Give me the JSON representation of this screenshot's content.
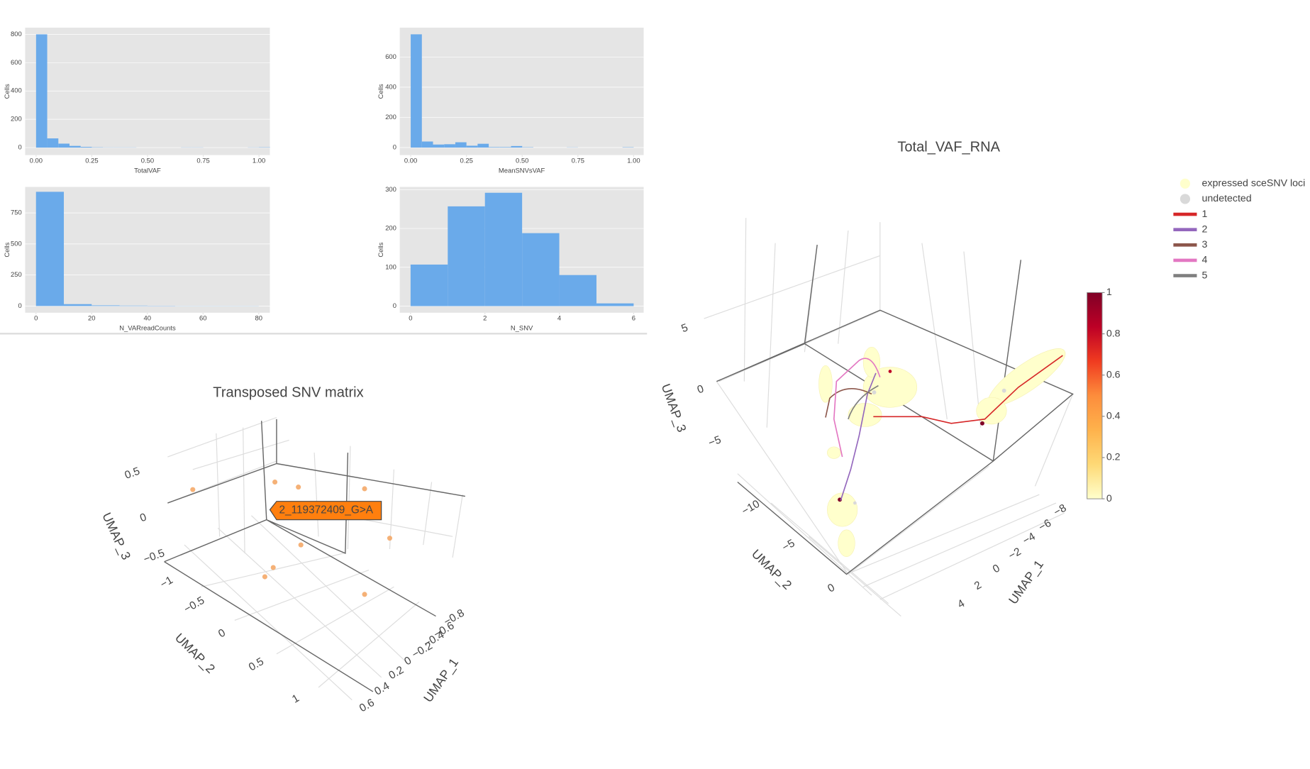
{
  "chart_data": [
    {
      "type": "histogram",
      "xlabel": "TotalVAF",
      "ylabel": "Cells",
      "color": "#6aaaea",
      "grid": true,
      "bins": [
        0,
        0.05,
        0.1,
        0.15,
        0.2,
        0.25,
        0.3,
        0.35,
        0.4,
        0.45,
        0.5,
        0.55,
        0.6,
        0.65,
        0.7,
        0.75,
        0.8,
        0.85,
        0.9,
        0.95,
        1.0,
        1.05
      ],
      "values": [
        800,
        65,
        28,
        12,
        5,
        2,
        1,
        1,
        1,
        0,
        0,
        0,
        0,
        1,
        1,
        0,
        0,
        0,
        0,
        1,
        2
      ],
      "xlim": [
        -0.049,
        1.049
      ],
      "ylim": [
        -53,
        847
      ],
      "xticks": [
        {
          "value": 0,
          "label": "0.00"
        },
        {
          "value": 0.25,
          "label": "0.25"
        },
        {
          "value": 0.5,
          "label": "0.50"
        },
        {
          "value": 0.75,
          "label": "0.75"
        },
        {
          "value": 1,
          "label": "1.00"
        }
      ],
      "yticks": [
        0,
        200,
        400,
        600,
        800
      ]
    },
    {
      "type": "histogram",
      "xlabel": "MeanSNVsVAF",
      "ylabel": "Cells",
      "color": "#6aaaea",
      "grid": true,
      "bins": [
        0,
        0.05,
        0.1,
        0.15,
        0.2,
        0.25,
        0.3,
        0.35,
        0.4,
        0.45,
        0.5,
        0.55,
        0.6,
        0.65,
        0.7,
        0.75,
        0.8,
        0.85,
        0.9,
        0.95,
        1.0
      ],
      "values": [
        750,
        40,
        20,
        22,
        35,
        12,
        25,
        3,
        3,
        10,
        2,
        0,
        0,
        0,
        1,
        0,
        0,
        0,
        0,
        2
      ],
      "xlim": [
        -0.049,
        1.045
      ],
      "ylim": [
        -50,
        794
      ],
      "xticks": [
        {
          "value": 0,
          "label": "0.00"
        },
        {
          "value": 0.25,
          "label": "0.25"
        },
        {
          "value": 0.5,
          "label": "0.50"
        },
        {
          "value": 0.75,
          "label": "0.75"
        },
        {
          "value": 1,
          "label": "1.00"
        }
      ],
      "yticks": [
        0,
        200,
        400,
        600
      ]
    },
    {
      "type": "histogram",
      "xlabel": "N_VARreadCounts",
      "ylabel": "Cells",
      "color": "#6aaaea",
      "grid": true,
      "bins": [
        0,
        10,
        20,
        30,
        40,
        50,
        60,
        70,
        80
      ],
      "values": [
        920,
        15,
        5,
        3,
        2,
        1,
        1,
        1
      ],
      "xlim": [
        -3.9,
        84
      ],
      "ylim": [
        -54,
        959
      ],
      "xticks": [
        0,
        20,
        40,
        60,
        80
      ],
      "yticks": [
        0,
        250,
        500,
        750
      ]
    },
    {
      "type": "histogram",
      "xlabel": "N_SNV",
      "ylabel": "Cells",
      "color": "#6aaaea",
      "grid": true,
      "bins": [
        0,
        1,
        2,
        3,
        4,
        5,
        6
      ],
      "values": [
        107,
        257,
        292,
        188,
        80,
        7
      ],
      "xlim": [
        -0.29,
        6.27
      ],
      "ylim": [
        -17,
        307
      ],
      "xticks": [
        0,
        2,
        4,
        6
      ],
      "yticks": [
        0,
        100,
        200,
        300
      ]
    }
  ],
  "snv_matrix": {
    "title": "Transposed SNV matrix",
    "x_title": "UMAP_1",
    "y_title": "UMAP_2",
    "z_title": "UMAP_3",
    "x_ticks": [
      "−0.8",
      "−0.6",
      "−0.4",
      "−0.2",
      "0",
      "0.2",
      "0.4",
      "0.6"
    ],
    "y_ticks": [
      "−1",
      "−0.5",
      "0",
      "0.5",
      "1"
    ],
    "z_ticks": [
      "0.5",
      "0",
      "−0.5"
    ],
    "hover_label": "2_119372409_G>A"
  },
  "vaf_plot": {
    "title": "Total_VAF_RNA",
    "x_title": "UMAP_1",
    "y_title": "UMAP_2",
    "z_title": "UMAP_3",
    "x_ticks": [
      "−8",
      "−6",
      "−4",
      "−2",
      "0",
      "2",
      "4"
    ],
    "y_ticks": [
      "−10",
      "−5",
      "0"
    ],
    "z_ticks": [
      "5",
      "0",
      "−5"
    ],
    "colorbar": {
      "range": [
        0,
        1
      ],
      "ticks": [
        0,
        0.2,
        0.4,
        0.6,
        0.8,
        1
      ],
      "colors": [
        "#ffffcc",
        "#fed976",
        "#feb24c",
        "#fd8d3c",
        "#f03b20",
        "#bd0026",
        "#800026"
      ]
    },
    "legend": [
      {
        "name": "expressed sceSNV loci",
        "color": "#ffffcc",
        "symbol": "circle"
      },
      {
        "name": "undetected",
        "color": "#d9d9d9",
        "symbol": "circle"
      },
      {
        "name": "1",
        "color": "#d62728",
        "symbol": "line"
      },
      {
        "name": "2",
        "color": "#9467bd",
        "symbol": "line"
      },
      {
        "name": "3",
        "color": "#8c564b",
        "symbol": "line"
      },
      {
        "name": "4",
        "color": "#e377c2",
        "symbol": "line"
      },
      {
        "name": "5",
        "color": "#7f7f7f",
        "symbol": "line"
      }
    ]
  }
}
